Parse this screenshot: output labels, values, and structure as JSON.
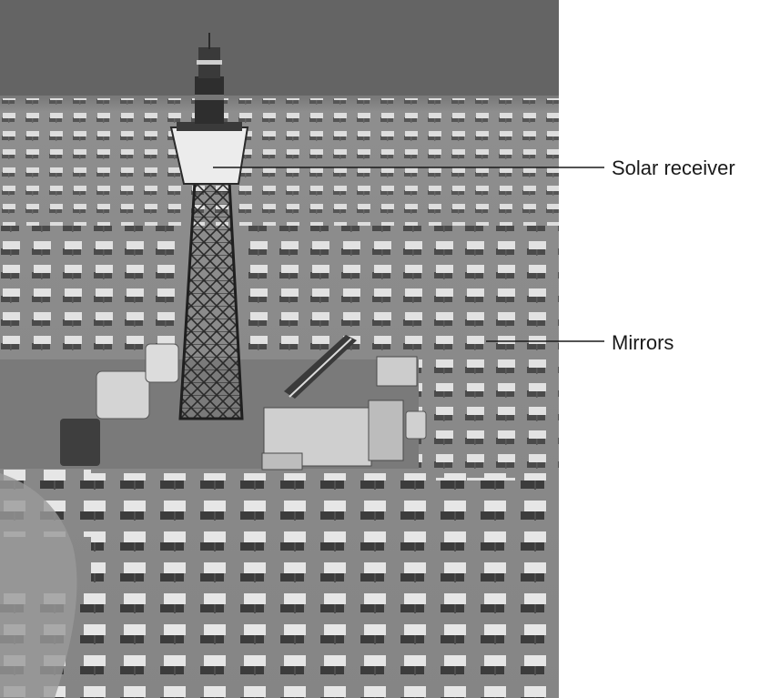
{
  "labels": {
    "solar_receiver": "Solar receiver",
    "mirrors": "Mirrors"
  },
  "colors": {
    "background": "#ffffff",
    "desert_far": "#6f6f6f",
    "desert_field": "#8c8c8c",
    "mirror_face": "#dcdcdc",
    "mirror_shadow": "#3a3a3a",
    "tower_frame": "#2a2a2a",
    "receiver": "#e8e8e8",
    "label_text": "#1a1a1a",
    "leader_line": "#1a1a1a"
  }
}
